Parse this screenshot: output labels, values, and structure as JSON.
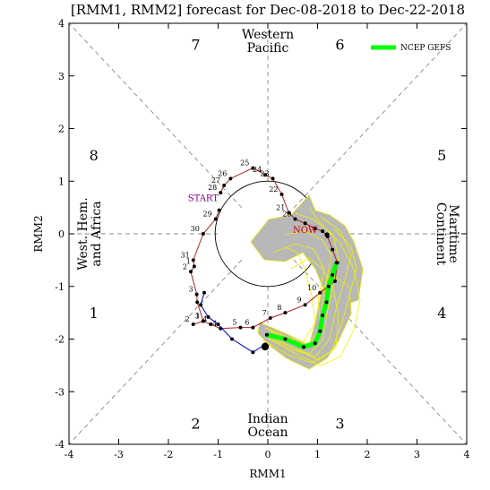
{
  "chart_data": {
    "type": "line",
    "title": "[RMM1, RMM2] forecast for Dec-08-2018 to Dec-22-2018",
    "xlabel": "RMM1",
    "ylabel": "RMM2",
    "xlim": [
      -4,
      4
    ],
    "ylim": [
      -4,
      4
    ],
    "x_ticks": [
      "-4",
      "-3",
      "-2",
      "-1",
      "0",
      "1",
      "2",
      "3",
      "4"
    ],
    "y_ticks": [
      "-4",
      "-3",
      "-2",
      "-1",
      "0",
      "1",
      "2",
      "3",
      "4"
    ],
    "grid": false,
    "legend": {
      "position": "top-right",
      "entries": [
        {
          "name": "NCEP GEFS",
          "color": "#00ff00"
        }
      ]
    },
    "phase_numbers": [
      {
        "label": "1",
        "x": -3.5,
        "y": -1.5
      },
      {
        "label": "2",
        "x": -1.45,
        "y": -3.6
      },
      {
        "label": "3",
        "x": 1.45,
        "y": -3.6
      },
      {
        "label": "4",
        "x": 3.5,
        "y": -1.5
      },
      {
        "label": "5",
        "x": 3.5,
        "y": 1.5
      },
      {
        "label": "6",
        "x": 1.45,
        "y": 3.6
      },
      {
        "label": "7",
        "x": -1.45,
        "y": 3.6
      },
      {
        "label": "8",
        "x": -3.5,
        "y": 1.5
      }
    ],
    "region_labels": {
      "top": [
        "Western",
        "Pacific"
      ],
      "bottom": [
        "Indian",
        "Ocean"
      ],
      "left": [
        "West. Hem.",
        "and Africa"
      ],
      "right": [
        "Maritime",
        "Continent"
      ]
    },
    "annotations": [
      {
        "text": "START",
        "x": -1.3,
        "y": 0.62,
        "color": "#800080"
      },
      {
        "text": "NOW",
        "x": 0.75,
        "y": 0.02,
        "color": "#d00000"
      }
    ],
    "series": [
      {
        "name": "",
        "color": "#b22222",
        "points": [
          {
            "x": -0.98,
            "y": 0.45,
            "label": ""
          },
          {
            "x": -1.05,
            "y": 0.28,
            "label": "29"
          },
          {
            "x": -1.3,
            "y": 0.0,
            "label": "30"
          },
          {
            "x": -1.5,
            "y": -0.5,
            "label": "31"
          },
          {
            "x": -1.48,
            "y": -0.62,
            "label": "1"
          },
          {
            "x": -1.55,
            "y": -0.72,
            "label": "2"
          },
          {
            "x": -1.43,
            "y": -1.15,
            "label": "3"
          },
          {
            "x": -1.42,
            "y": -1.3,
            "label": ""
          },
          {
            "x": -1.3,
            "y": -1.66,
            "label": "1"
          },
          {
            "x": -1.5,
            "y": -1.72,
            "label": "2"
          },
          {
            "x": -1.3,
            "y": -1.66,
            "label": "3"
          },
          {
            "x": -1.15,
            "y": -1.72,
            "label": "4"
          },
          {
            "x": -0.95,
            "y": -1.8,
            "label": "4"
          },
          {
            "x": -0.55,
            "y": -1.78,
            "label": "5"
          },
          {
            "x": -0.3,
            "y": -1.78,
            "label": "6"
          },
          {
            "x": 0.05,
            "y": -1.6,
            "label": "7"
          },
          {
            "x": 0.35,
            "y": -1.5,
            "label": "8"
          },
          {
            "x": 0.75,
            "y": -1.35,
            "label": "9"
          },
          {
            "x": 1.05,
            "y": -1.12,
            "label": "10"
          },
          {
            "x": 1.35,
            "y": -0.9,
            "label": ""
          },
          {
            "x": 1.4,
            "y": -0.55,
            "label": ""
          },
          {
            "x": 1.3,
            "y": -0.3,
            "label": ""
          },
          {
            "x": 1.2,
            "y": -0.05,
            "label": ""
          },
          {
            "x": 1.1,
            "y": 0.05,
            "label": ""
          },
          {
            "x": 0.95,
            "y": 0.1,
            "label": ""
          },
          {
            "x": 0.75,
            "y": 0.2,
            "label": ""
          },
          {
            "x": 0.55,
            "y": 0.28,
            "label": "20"
          },
          {
            "x": 0.42,
            "y": 0.4,
            "label": "21"
          },
          {
            "x": 0.28,
            "y": 0.75,
            "label": "22"
          },
          {
            "x": 0.1,
            "y": 1.05,
            "label": "23"
          },
          {
            "x": -0.05,
            "y": 1.12,
            "label": "24"
          },
          {
            "x": -0.3,
            "y": 1.25,
            "label": "25"
          },
          {
            "x": -0.75,
            "y": 1.05,
            "label": "26"
          },
          {
            "x": -0.88,
            "y": 0.92,
            "label": "27"
          },
          {
            "x": -0.95,
            "y": 0.78,
            "label": "28"
          }
        ]
      },
      {
        "name": "",
        "color": "#0000cd",
        "points": [
          {
            "x": -1.28,
            "y": -1.12,
            "label": ""
          },
          {
            "x": -1.35,
            "y": -1.35,
            "label": ""
          },
          {
            "x": -1.2,
            "y": -1.58,
            "label": ""
          },
          {
            "x": -1.0,
            "y": -1.72,
            "label": ""
          },
          {
            "x": -0.72,
            "y": -2.0,
            "label": ""
          },
          {
            "x": -0.3,
            "y": -2.25,
            "label": ""
          },
          {
            "x": -0.05,
            "y": -2.1,
            "label": ""
          }
        ]
      },
      {
        "name": "NCEP GEFS",
        "color": "#00ff00",
        "points": [
          {
            "x": -0.02,
            "y": -1.92,
            "label": ""
          },
          {
            "x": 0.35,
            "y": -2.0,
            "label": ""
          },
          {
            "x": 0.72,
            "y": -2.15,
            "label": ""
          },
          {
            "x": 0.95,
            "y": -2.08,
            "label": ""
          },
          {
            "x": 1.05,
            "y": -1.85,
            "label": ""
          },
          {
            "x": 1.1,
            "y": -1.55,
            "label": ""
          },
          {
            "x": 1.18,
            "y": -1.3,
            "label": ""
          },
          {
            "x": 1.22,
            "y": -1.0,
            "label": ""
          },
          {
            "x": 1.3,
            "y": -0.78,
            "label": ""
          },
          {
            "x": 1.38,
            "y": -0.55,
            "label": ""
          }
        ]
      }
    ]
  }
}
